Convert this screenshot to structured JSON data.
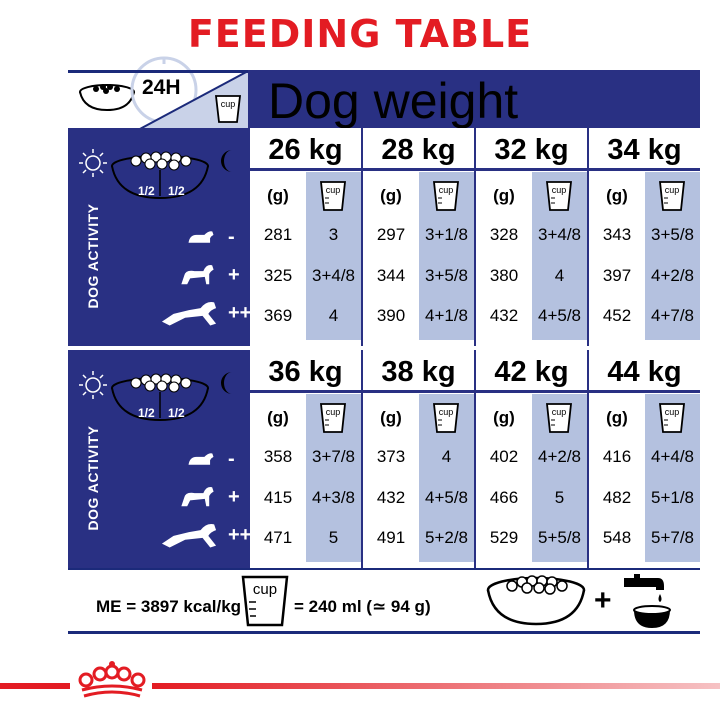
{
  "title": "FEEDING TABLE",
  "header": {
    "dog_weight_label": "Dog weight",
    "hours_label": "24H",
    "cup_label": "cup"
  },
  "activity_label": "DOG ACTIVITY",
  "bowl_halves": [
    "1/2",
    "1/2"
  ],
  "activity_signs": [
    "-",
    "+",
    "++"
  ],
  "unit_grams": "(g)",
  "tables": [
    {
      "weights": [
        {
          "label": "26 kg",
          "rows": [
            [
              "281",
              "3"
            ],
            [
              "325",
              "3+4/8"
            ],
            [
              "369",
              "4"
            ]
          ]
        },
        {
          "label": "28 kg",
          "rows": [
            [
              "297",
              "3+1/8"
            ],
            [
              "344",
              "3+5/8"
            ],
            [
              "390",
              "4+1/8"
            ]
          ]
        },
        {
          "label": "32 kg",
          "rows": [
            [
              "328",
              "3+4/8"
            ],
            [
              "380",
              "4"
            ],
            [
              "432",
              "4+5/8"
            ]
          ]
        },
        {
          "label": "34 kg",
          "rows": [
            [
              "343",
              "3+5/8"
            ],
            [
              "397",
              "4+2/8"
            ],
            [
              "452",
              "4+7/8"
            ]
          ]
        }
      ]
    },
    {
      "weights": [
        {
          "label": "36 kg",
          "rows": [
            [
              "358",
              "3+7/8"
            ],
            [
              "415",
              "4+3/8"
            ],
            [
              "471",
              "5"
            ]
          ]
        },
        {
          "label": "38 kg",
          "rows": [
            [
              "373",
              "4"
            ],
            [
              "432",
              "4+5/8"
            ],
            [
              "491",
              "5+2/8"
            ]
          ]
        },
        {
          "label": "42 kg",
          "rows": [
            [
              "402",
              "4+2/8"
            ],
            [
              "466",
              "5"
            ],
            [
              "529",
              "5+5/8"
            ]
          ]
        },
        {
          "label": "44 kg",
          "rows": [
            [
              "416",
              "4+4/8"
            ],
            [
              "482",
              "5+1/8"
            ],
            [
              "548",
              "5+7/8"
            ]
          ]
        }
      ]
    }
  ],
  "footer": {
    "energy": "ME = 3897 kcal/kg",
    "cup_equivalence": "= 240 ml (≃ 94 g)",
    "plus": "+"
  },
  "colors": {
    "navy": "#293083",
    "cup_column": "#b4c1df",
    "red": "#e31c23"
  }
}
